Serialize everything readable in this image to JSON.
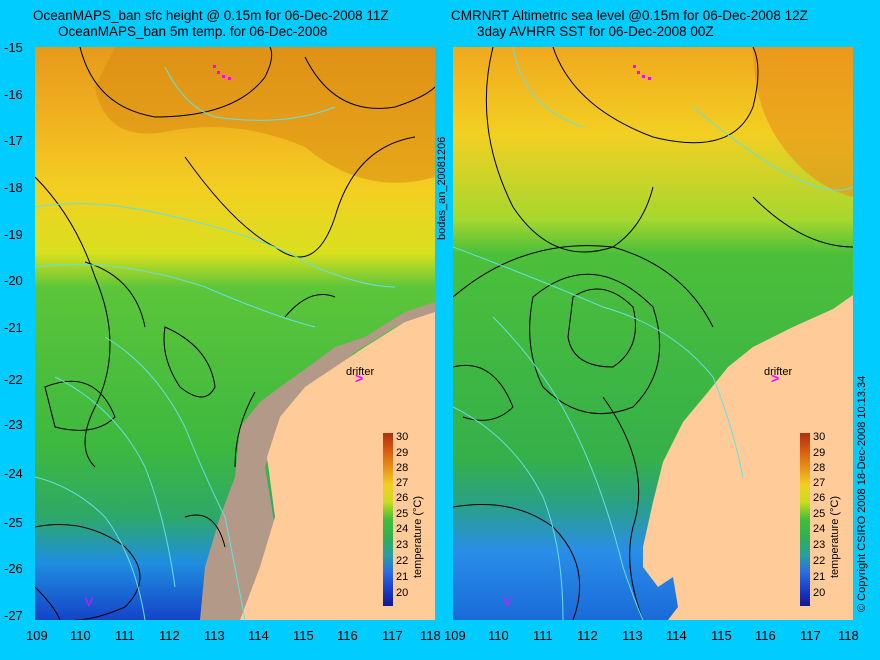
{
  "left_panel": {
    "title_line1": "OceanMAPS_ban sfc height @ 0.15m for 06-Dec-2008 11Z",
    "title_line2": "OceanMAPS_ban 5m temp. for 06-Dec-2008"
  },
  "right_panel": {
    "title_line1": "CMRNRT Altimetric sea level  @0.15m  for 06-Dec-2008 12Z",
    "title_line2": "3day AVHRR SST for 06-Dec-2008 00Z"
  },
  "y_ticks": [
    "-15",
    "-16",
    "-17",
    "-18",
    "-19",
    "-20",
    "-21",
    "-22",
    "-23",
    "-24",
    "-25",
    "-26",
    "-27"
  ],
  "x_ticks": [
    "109",
    "110",
    "111",
    "112",
    "113",
    "114",
    "115",
    "116",
    "117",
    "118"
  ],
  "middle_label": "bodas_an_20081206",
  "copyright": "© Copyright CSIRO 2008   18-Dec-2008 10:13:34",
  "colorbar": {
    "title": "temperature (°C)",
    "ticks": [
      "30",
      "29",
      "28",
      "27",
      "26",
      "25",
      "24",
      "23",
      "22",
      "21",
      "20"
    ],
    "range": [
      20,
      30
    ]
  },
  "drifter_label": "drifter",
  "marker_v": "V",
  "colors": {
    "background": "#00ccff",
    "land": "#ffcc99",
    "shelf_land": "#b39a88",
    "contour": "#000000",
    "bathy": "#66e0e0",
    "drifter": "#ff00ff"
  },
  "icons": {
    "drifter_track": "magenta-arrow"
  }
}
